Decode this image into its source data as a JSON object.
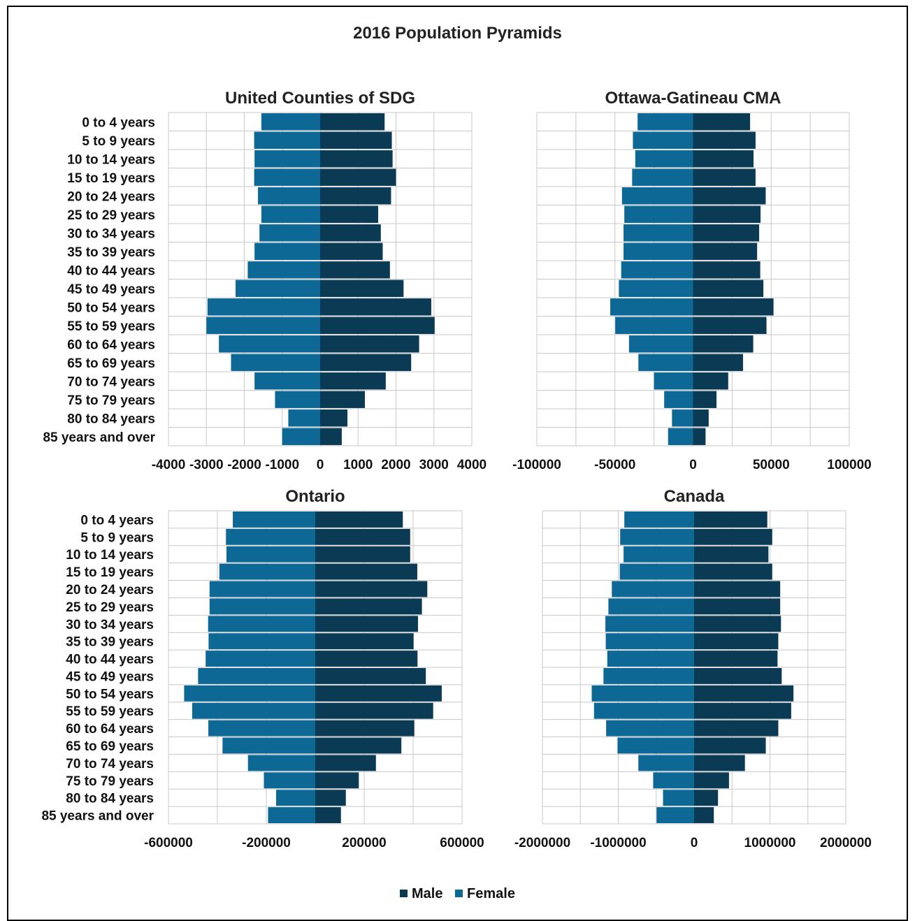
{
  "title": "2016 Population Pyramids",
  "colors": {
    "male": "#0b3a55",
    "female": "#0d6896",
    "grid": "#c8c8c8"
  },
  "chart_data": [
    {
      "type": "bar",
      "title": "United Counties of SDG",
      "categories": [
        "0 to 4 years",
        "5 to 9 years",
        "10 to 14 years",
        "15 to 19 years",
        "20 to 24 years",
        "25 to 29 years",
        "30 to 34 years",
        "35 to 39 years",
        "40 to 44 years",
        "45 to 49 years",
        "50 to 54 years",
        "55 to 59 years",
        "60 to 64 years",
        "65 to 69 years",
        "70 to 74 years",
        "75 to 79 years",
        "80 to 84 years",
        "85 years and over"
      ],
      "xlim": [
        -4000,
        4000
      ],
      "xticks": [
        -4000,
        -3000,
        -2000,
        -1000,
        0,
        1000,
        2000,
        3000,
        4000
      ],
      "xtick_labels": [
        "-4000",
        "-3000",
        "-2000",
        "-1000",
        "0",
        "1000",
        "2000",
        "3000",
        "4000"
      ],
      "series": [
        {
          "name": "Male",
          "values": [
            1700,
            1890,
            1910,
            2000,
            1870,
            1530,
            1600,
            1650,
            1840,
            2200,
            2930,
            3020,
            2610,
            2400,
            1730,
            1180,
            720,
            570
          ]
        },
        {
          "name": "Female",
          "values": [
            -1550,
            -1740,
            -1730,
            -1740,
            -1640,
            -1550,
            -1600,
            -1730,
            -1910,
            -2230,
            -2970,
            -3000,
            -2670,
            -2350,
            -1730,
            -1190,
            -840,
            -1000
          ]
        }
      ]
    },
    {
      "type": "bar",
      "title": "Ottawa-Gatineau CMA",
      "categories": [
        "0 to 4 years",
        "5 to 9 years",
        "10 to 14 years",
        "15 to 19 years",
        "20 to 24 years",
        "25 to 29 years",
        "30 to 34 years",
        "35 to 39 years",
        "40 to 44 years",
        "45 to 49 years",
        "50 to 54 years",
        "55 to 59 years",
        "60 to 64 years",
        "65 to 69 years",
        "70 to 74 years",
        "75 to 79 years",
        "80 to 84 years",
        "85 years and over"
      ],
      "xlim": [
        -100000,
        100000
      ],
      "xticks": [
        -100000,
        -50000,
        0,
        50000,
        100000
      ],
      "xtick_labels": [
        "-100000",
        "-50000",
        "0",
        "50000",
        "100000"
      ],
      "series": [
        {
          "name": "Male",
          "values": [
            36500,
            40000,
            38700,
            40000,
            46500,
            43200,
            42300,
            41000,
            43000,
            45000,
            51500,
            47000,
            38500,
            32000,
            22500,
            15000,
            10000,
            8000
          ]
        },
        {
          "name": "Female",
          "values": [
            -35500,
            -38500,
            -37000,
            -39000,
            -45500,
            -44000,
            -44500,
            -44500,
            -46000,
            -47500,
            -53000,
            -49800,
            -41000,
            -35000,
            -25000,
            -18500,
            -13500,
            -16000
          ]
        }
      ]
    },
    {
      "type": "bar",
      "title": "Ontario",
      "categories": [
        "0 to 4 years",
        "5 to 9 years",
        "10 to 14 years",
        "15 to 19 years",
        "20 to 24 years",
        "25 to 29 years",
        "30 to 34 years",
        "35 to 39 years",
        "40 to 44 years",
        "45 to 49 years",
        "50 to 54 years",
        "55 to 59 years",
        "60 to 64 years",
        "65 to 69 years",
        "70 to 74 years",
        "75 to 79 years",
        "80 to 84 years",
        "85 years and over"
      ],
      "xlim": [
        -600000,
        600000
      ],
      "xticks": [
        -600000,
        -200000,
        200000,
        600000
      ],
      "xtick_labels": [
        "-600000",
        "-200000",
        "200000",
        "600000"
      ],
      "series": [
        {
          "name": "Male",
          "values": [
            358000,
            388000,
            388000,
            417000,
            458000,
            436000,
            420000,
            402000,
            418000,
            452000,
            517000,
            482000,
            405000,
            352000,
            248000,
            178000,
            125000,
            105000
          ]
        },
        {
          "name": "Female",
          "values": [
            -337000,
            -365000,
            -363000,
            -392000,
            -432000,
            -432000,
            -438000,
            -436000,
            -448000,
            -479000,
            -536000,
            -503000,
            -437000,
            -379000,
            -275000,
            -210000,
            -160000,
            -193000
          ]
        }
      ]
    },
    {
      "type": "bar",
      "title": "Canada",
      "categories": [
        "0 to 4 years",
        "5 to 9 years",
        "10 to 14 years",
        "15 to 19 years",
        "20 to 24 years",
        "25 to 29 years",
        "30 to 34 years",
        "35 to 39 years",
        "40 to 44 years",
        "45 to 49 years",
        "50 to 54 years",
        "55 to 59 years",
        "60 to 64 years",
        "65 to 69 years",
        "70 to 74 years",
        "75 to 79 years",
        "80 to 84 years",
        "85 years and over"
      ],
      "xlim": [
        -2000000,
        2000000
      ],
      "xticks": [
        -2000000,
        -1000000,
        0,
        1000000,
        2000000
      ],
      "xtick_labels": [
        "-2000000",
        "-1000000",
        "0",
        "1000000",
        "2000000"
      ],
      "series": [
        {
          "name": "Male",
          "values": [
            965000,
            1030000,
            980000,
            1030000,
            1135000,
            1135000,
            1145000,
            1110000,
            1100000,
            1155000,
            1310000,
            1280000,
            1110000,
            945000,
            670000,
            460000,
            315000,
            260000
          ]
        },
        {
          "name": "Female",
          "values": [
            -920000,
            -975000,
            -930000,
            -980000,
            -1085000,
            -1130000,
            -1170000,
            -1165000,
            -1145000,
            -1195000,
            -1350000,
            -1320000,
            -1160000,
            -1010000,
            -735000,
            -540000,
            -410000,
            -495000
          ]
        }
      ]
    }
  ],
  "legend": [
    {
      "label": "Male",
      "color_key": "male"
    },
    {
      "label": "Female",
      "color_key": "female"
    }
  ]
}
